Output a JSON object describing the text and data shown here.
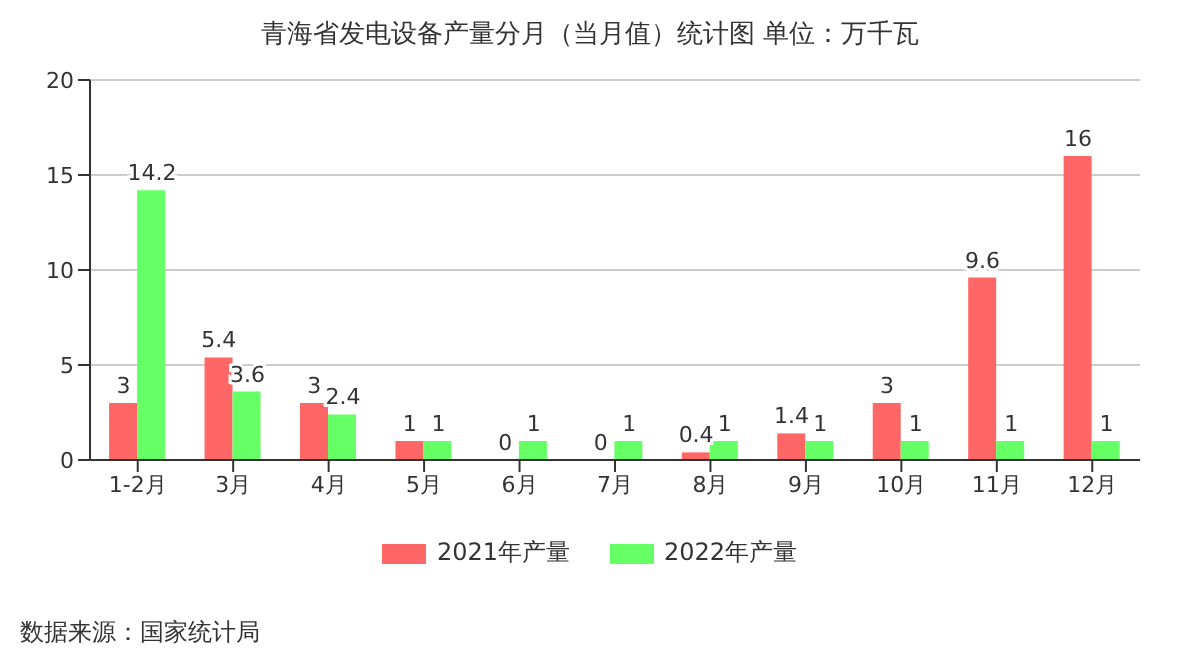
{
  "chart_data": {
    "type": "bar",
    "title": "青海省发电设备产量分月（当月值）统计图 单位：万千瓦",
    "categories": [
      "1-2月",
      "3月",
      "4月",
      "5月",
      "6月",
      "7月",
      "8月",
      "9月",
      "10月",
      "11月",
      "12月"
    ],
    "series": [
      {
        "name": "2021年产量",
        "color": "#ff6666",
        "values": [
          3,
          5.4,
          3,
          1,
          0,
          0,
          0.4,
          1.4,
          3,
          9.6,
          16
        ]
      },
      {
        "name": "2022年产量",
        "color": "#66ff66",
        "values": [
          14.2,
          3.6,
          2.4,
          1,
          1,
          1,
          1,
          1,
          1,
          1,
          1
        ]
      }
    ],
    "ylim": [
      0,
      20
    ],
    "yticks": [
      0,
      5,
      10,
      15,
      20
    ],
    "grid": "y",
    "legend": "bottom",
    "data_labels": true,
    "annotations": [
      "数据来源：国家统计局"
    ]
  }
}
